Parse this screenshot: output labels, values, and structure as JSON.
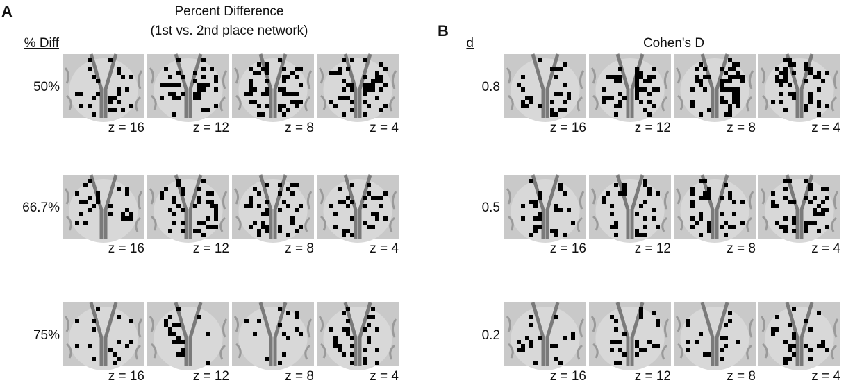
{
  "panels": [
    {
      "label": "A",
      "title": [
        "Percent Difference",
        "(1st vs. 2nd place network)"
      ],
      "row_header": "% Diff",
      "rows": [
        {
          "label": "50%",
          "slices": [
            "z = 16",
            "z = 12",
            "z = 8",
            "z = 4"
          ]
        },
        {
          "label": "66.7%",
          "slices": [
            "z = 16",
            "z = 12",
            "z = 8",
            "z = 4"
          ]
        },
        {
          "label": "75%",
          "slices": [
            "z = 16",
            "z = 12",
            "z = 8",
            "z = 4"
          ]
        }
      ]
    },
    {
      "label": "B",
      "title": [
        "Cohen's D"
      ],
      "row_header": "d",
      "rows": [
        {
          "label": "0.8",
          "slices": [
            "z = 16",
            "z = 12",
            "z = 8",
            "z = 4"
          ]
        },
        {
          "label": "0.5",
          "slices": [
            "z = 16",
            "z = 12",
            "z = 8",
            "z = 4"
          ]
        },
        {
          "label": "0.2",
          "slices": [
            "z = 16",
            "z = 12",
            "z = 8",
            "z = 4"
          ]
        }
      ]
    }
  ]
}
